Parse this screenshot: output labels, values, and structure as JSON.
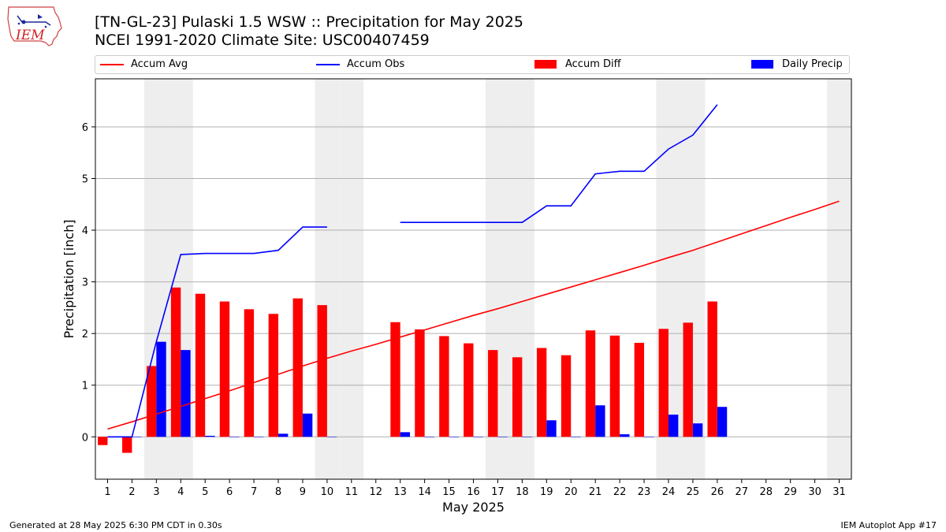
{
  "header": {
    "title_line1": "[TN-GL-23] Pulaski 1.5 WSW :: Precipitation for May 2025",
    "title_line2": "NCEI 1991-2020 Climate Site: USC00407459",
    "logo_text": "IEM"
  },
  "legend": {
    "items": [
      {
        "label": "Accum Avg",
        "color": "#ff0000",
        "kind": "line"
      },
      {
        "label": "Accum Obs",
        "color": "#0000ff",
        "kind": "line"
      },
      {
        "label": "Accum Diff",
        "color": "#ff0000",
        "kind": "bar"
      },
      {
        "label": "Daily Precip",
        "color": "#0000ff",
        "kind": "bar"
      }
    ],
    "placement": "top (above plot, full width)"
  },
  "footer": {
    "left": "Generated at 28 May 2025 6:30 PM CDT in 0.30s",
    "right": "IEM Autoplot App #17"
  },
  "colors": {
    "avg": "#ff0000",
    "obs": "#0000ff",
    "diff": "#ff0000",
    "daily": "#0000ff",
    "weekend_shade": "#eeeeee",
    "grid": "#b0b0b0"
  },
  "chart_data": {
    "type": "bar",
    "xlabel": "May 2025",
    "ylabel": "Precipitation [inch]",
    "xlim": [
      0.5,
      31.5
    ],
    "ylim": [
      -0.82,
      6.93
    ],
    "x": [
      1,
      2,
      3,
      4,
      5,
      6,
      7,
      8,
      9,
      10,
      11,
      12,
      13,
      14,
      15,
      16,
      17,
      18,
      19,
      20,
      21,
      22,
      23,
      24,
      25,
      26,
      27,
      28,
      29,
      30,
      31
    ],
    "x_tick_labels": [
      "1",
      "2",
      "3",
      "4",
      "5",
      "6",
      "7",
      "8",
      "9",
      "10",
      "11",
      "12",
      "13",
      "14",
      "15",
      "16",
      "17",
      "18",
      "19",
      "20",
      "21",
      "22",
      "23",
      "24",
      "25",
      "26",
      "27",
      "28",
      "29",
      "30",
      "31"
    ],
    "y_ticks": [
      0,
      1,
      2,
      3,
      4,
      5,
      6
    ],
    "y_tick_labels": [
      "0",
      "1",
      "2",
      "3",
      "4",
      "5",
      "6"
    ],
    "grid": "horizontal",
    "shaded_days": [
      3,
      4,
      10,
      11,
      17,
      18,
      24,
      25,
      31
    ],
    "series": [
      {
        "name": "Accum Avg",
        "kind": "line",
        "values": [
          0.15,
          0.29,
          0.44,
          0.59,
          0.74,
          0.89,
          1.05,
          1.21,
          1.37,
          1.52,
          1.66,
          1.79,
          1.93,
          2.07,
          2.21,
          2.35,
          2.48,
          2.62,
          2.76,
          2.9,
          3.04,
          3.18,
          3.32,
          3.47,
          3.61,
          3.77,
          3.93,
          4.09,
          4.25,
          4.4,
          4.56
        ]
      },
      {
        "name": "Accum Obs",
        "kind": "line",
        "values": [
          0.0,
          0.0,
          1.84,
          3.53,
          3.55,
          3.55,
          3.55,
          3.61,
          4.06,
          4.06,
          null,
          null,
          4.15,
          4.15,
          4.15,
          4.15,
          4.15,
          4.15,
          4.47,
          4.47,
          5.09,
          5.14,
          5.14,
          5.57,
          5.84,
          6.43,
          null,
          null,
          null,
          null,
          null
        ]
      },
      {
        "name": "Accum Diff",
        "kind": "bar",
        "values": [
          -0.16,
          -0.31,
          1.37,
          2.89,
          2.77,
          2.62,
          2.47,
          2.38,
          2.68,
          2.55,
          null,
          null,
          2.22,
          2.08,
          1.95,
          1.81,
          1.68,
          1.54,
          1.72,
          1.58,
          2.06,
          1.96,
          1.82,
          2.09,
          2.21,
          2.62,
          null,
          null,
          null,
          null,
          null
        ]
      },
      {
        "name": "Daily Precip",
        "kind": "bar",
        "values": [
          0.0,
          0.0,
          1.84,
          1.68,
          0.02,
          0.0,
          0.0,
          0.06,
          0.45,
          0.0,
          null,
          null,
          0.09,
          0.0,
          0.0,
          0.0,
          0.0,
          0.0,
          0.32,
          0.0,
          0.61,
          0.05,
          0.0,
          0.43,
          0.26,
          0.58,
          null,
          null,
          null,
          null,
          null
        ]
      }
    ]
  }
}
